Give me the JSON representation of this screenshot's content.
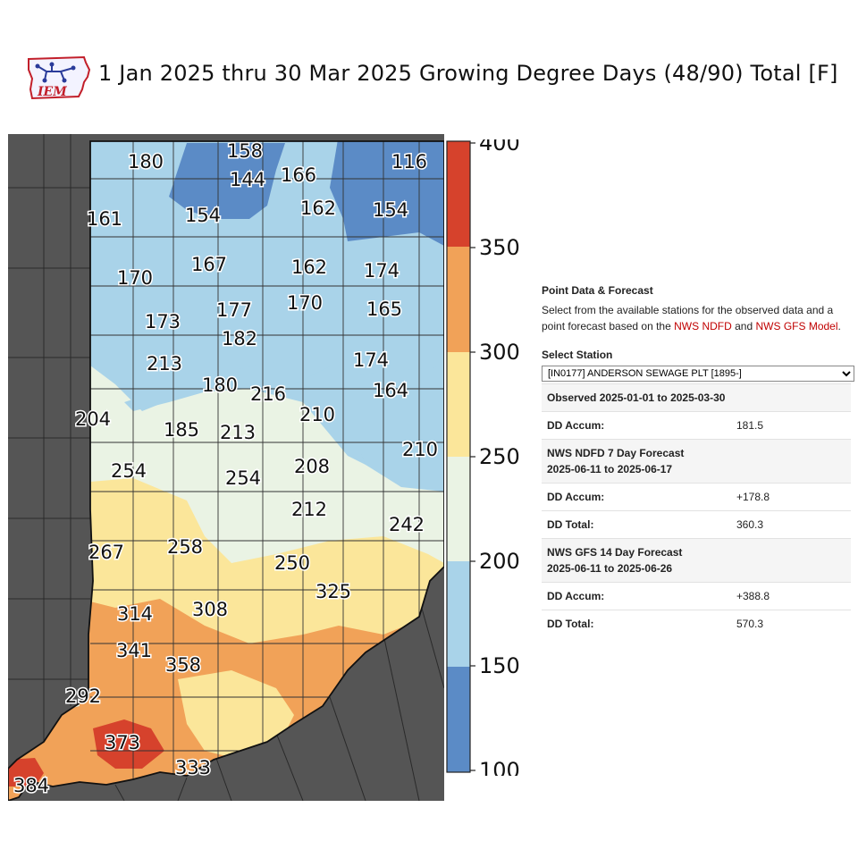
{
  "title": "1 Jan 2025 thru 30 Mar 2025 Growing Degree Days (48/90) Total [F]",
  "logo_text": "IEM",
  "colors": {
    "c100": "#5b8bc6",
    "c150": "#a9d3e9",
    "c200": "#eaf3e4",
    "c250": "#fbe69a",
    "c300": "#f1a258",
    "c350": "#d6422c",
    "outside": "#555555",
    "border": "#222222"
  },
  "colorbar": {
    "ticks": [
      "400",
      "350",
      "300",
      "250",
      "200",
      "150",
      "100"
    ]
  },
  "map_labels": [
    {
      "text": "158"
    },
    {
      "text": "180"
    },
    {
      "text": "144"
    },
    {
      "text": "166"
    },
    {
      "text": "116"
    },
    {
      "text": "161"
    },
    {
      "text": "154"
    },
    {
      "text": "162"
    },
    {
      "text": "154"
    },
    {
      "text": "167"
    },
    {
      "text": "162"
    },
    {
      "text": "174"
    },
    {
      "text": "170"
    },
    {
      "text": "170"
    },
    {
      "text": "165"
    },
    {
      "text": "173"
    },
    {
      "text": "177"
    },
    {
      "text": "182"
    },
    {
      "text": "174"
    },
    {
      "text": "213"
    },
    {
      "text": "180"
    },
    {
      "text": "216"
    },
    {
      "text": "164"
    },
    {
      "text": "210"
    },
    {
      "text": "204"
    },
    {
      "text": "185"
    },
    {
      "text": "213"
    },
    {
      "text": "210"
    },
    {
      "text": "254"
    },
    {
      "text": "208"
    },
    {
      "text": "254"
    },
    {
      "text": "212"
    },
    {
      "text": "242"
    },
    {
      "text": "267"
    },
    {
      "text": "258"
    },
    {
      "text": "250"
    },
    {
      "text": "325"
    },
    {
      "text": "314"
    },
    {
      "text": "308"
    },
    {
      "text": "341"
    },
    {
      "text": "358"
    },
    {
      "text": "292"
    },
    {
      "text": "373"
    },
    {
      "text": "333"
    },
    {
      "text": "384"
    }
  ],
  "panel": {
    "heading": "Point Data & Forecast",
    "desc_a": "Select from the available stations for the observed data and a point forecast based on the ",
    "link1": "NWS NDFD",
    "desc_and": " and ",
    "link2": "NWS GFS Model",
    "desc_end": ".",
    "select_label": "Select Station",
    "station_value": "[IN0177] ANDERSON SEWAGE PLT [1895-]",
    "observed_header": "Observed 2025-01-01 to 2025-03-30",
    "dd_accum_label": "DD Accum:",
    "dd_total_label": "DD Total:",
    "obs_accum": "181.5",
    "ndfd_header_1": "NWS NDFD 7 Day Forecast",
    "ndfd_header_2": "2025-06-11 to 2025-06-17",
    "ndfd_accum": "+178.8",
    "ndfd_total": "360.3",
    "gfs_header_1": "NWS GFS 14 Day Forecast",
    "gfs_header_2": "2025-06-11 to 2025-06-26",
    "gfs_accum": "+388.8",
    "gfs_total": "570.3"
  }
}
